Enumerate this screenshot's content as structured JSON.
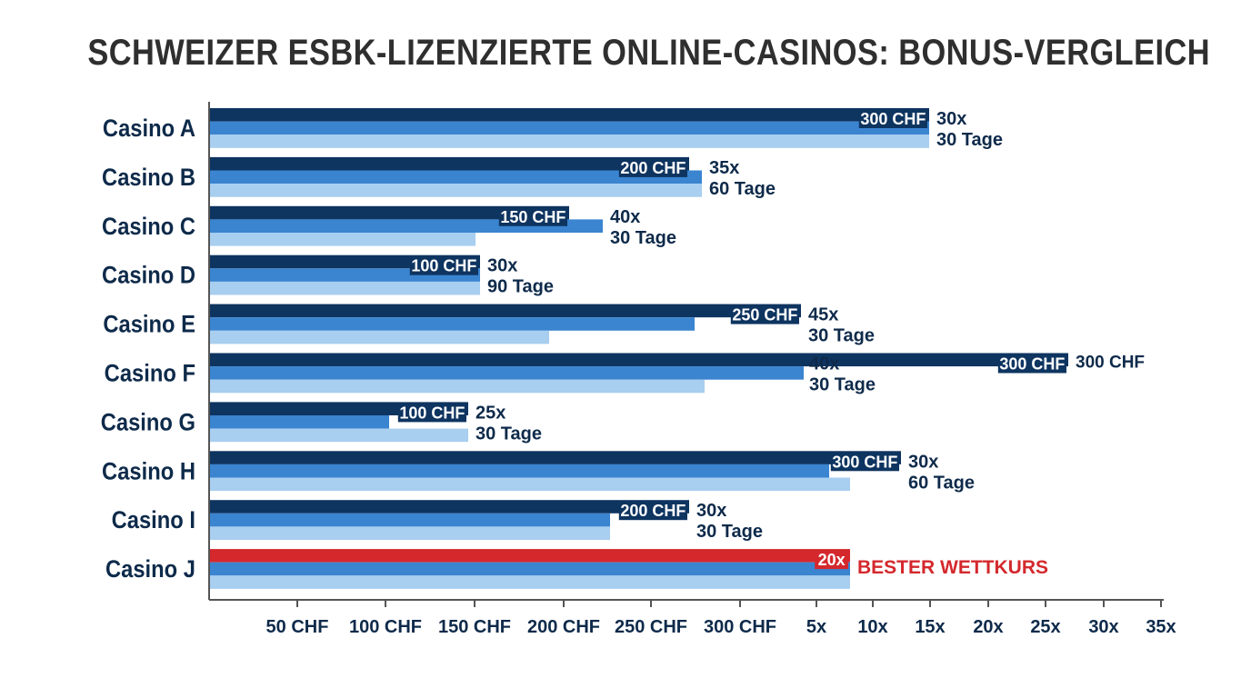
{
  "title": "SCHWEIZER ESBK-LIZENZIERTE ONLINE-CASINOS: BONUS-VERGLEICH",
  "colors": {
    "bonus": "#0e3460",
    "wagering": "#3a84d0",
    "validity": "#a8cef0",
    "highlight": "#d4282d",
    "axis": "#555555",
    "label": "#0e2a4a"
  },
  "chart_data": {
    "type": "bar",
    "orientation": "horizontal",
    "title": "SCHWEIZER ESBK-LIZENZIERTE ONLINE-CASINOS: BONUS-VERGLEICH",
    "categories": [
      "Casino A",
      "Casino B",
      "Casino C",
      "Casino D",
      "Casino E",
      "Casino F",
      "Casino G",
      "Casino H",
      "Casino I",
      "Casino J"
    ],
    "x_ticks": [
      "50 CHF",
      "100 CHF",
      "150 CHF",
      "200 CHF",
      "250 CHF",
      "300 CHF",
      "5x",
      "10x",
      "15x",
      "20x",
      "25x",
      "30x",
      "35x"
    ],
    "series": [
      {
        "role": "bonus",
        "values": [
          300,
          200,
          150,
          100,
          250,
          300,
          100,
          300,
          200,
          null
        ],
        "labels": [
          "300 CHF",
          "200 CHF",
          "150 CHF",
          "100 CHF",
          "250 CHF",
          "300 CHF",
          "100 CHF",
          "300 CHF",
          "200 CHF",
          "20x"
        ]
      },
      {
        "role": "wagering",
        "values": [
          30,
          35,
          40,
          30,
          45,
          40,
          25,
          30,
          30,
          20
        ],
        "labels": [
          "30x",
          "35x",
          "40x",
          "30x",
          "45x",
          "40x",
          "25x",
          "30x",
          "30x",
          ""
        ]
      },
      {
        "role": "validity",
        "values": [
          30,
          60,
          30,
          90,
          30,
          30,
          30,
          60,
          30,
          null
        ],
        "labels": [
          "30 Tage",
          "60 Tage",
          "30 Tage",
          "90 Tage",
          "30 Tage",
          "30 Tage",
          "30 Tage",
          "60 Tage",
          "30 Tage",
          ""
        ]
      }
    ],
    "outside_labels": [
      "",
      "",
      "",
      "",
      "",
      "300 CHF",
      "",
      "",
      "",
      "BESTER WETTKURS"
    ],
    "highlight_category": "Casino J",
    "grid": false,
    "legend": "none"
  }
}
